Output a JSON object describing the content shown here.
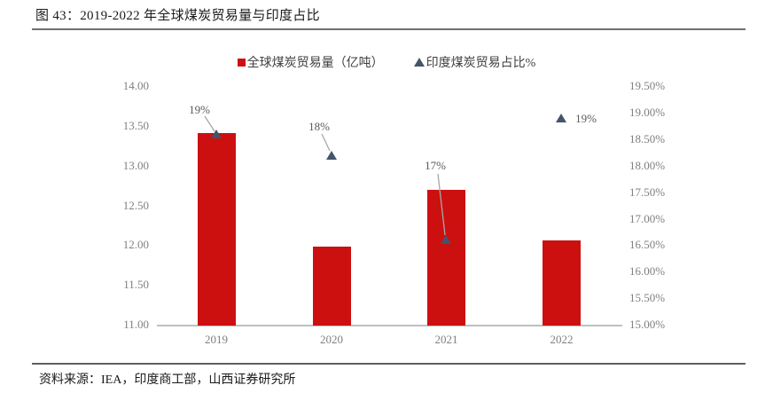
{
  "page": {
    "title": "图 43：2019-2022 年全球煤炭贸易量与印度占比",
    "source_note": "资料来源：IEA，印度商工部，山西证券研究所"
  },
  "legend": {
    "bar_series_label": "全球煤炭贸易量（亿吨）",
    "marker_series_label": "印度煤炭贸易占比%"
  },
  "colors": {
    "bar": "#cc1010",
    "marker": "#44546a",
    "leader_line": "#a6a6a6",
    "axis_text": "#808080",
    "data_label_text": "#595959",
    "axis_line": "#bfbfbf",
    "rule": "#6e6e6e"
  },
  "chart_data": {
    "type": "bar",
    "subtype": "dual-axis combo: bars (left axis) + triangle scatter markers (right axis)",
    "title": "图 43：2019-2022 年全球煤炭贸易量与印度占比",
    "categories": [
      "2019",
      "2020",
      "2021",
      "2022"
    ],
    "series": [
      {
        "name": "全球煤炭贸易量（亿吨）",
        "type": "bar",
        "axis": "left",
        "values": [
          13.41,
          11.98,
          12.7,
          12.06
        ]
      },
      {
        "name": "印度煤炭贸易占比%",
        "type": "scatter-triangle",
        "axis": "right",
        "values": [
          18.6,
          18.2,
          16.6,
          18.9
        ],
        "point_labels": [
          "19%",
          "18%",
          "17%",
          "19%"
        ]
      }
    ],
    "left_axis": {
      "min": 11.0,
      "max": 14.0,
      "step": 0.5,
      "ticks": [
        "14.00",
        "13.50",
        "13.00",
        "12.50",
        "12.00",
        "11.50",
        "11.00"
      ]
    },
    "right_axis": {
      "min": 15.0,
      "max": 19.5,
      "step": 0.5,
      "ticks": [
        "19.50%",
        "19.00%",
        "18.50%",
        "18.00%",
        "17.50%",
        "17.00%",
        "16.50%",
        "16.00%",
        "15.50%",
        "15.00%"
      ]
    },
    "grid": "off",
    "legend_position": "top-center"
  }
}
